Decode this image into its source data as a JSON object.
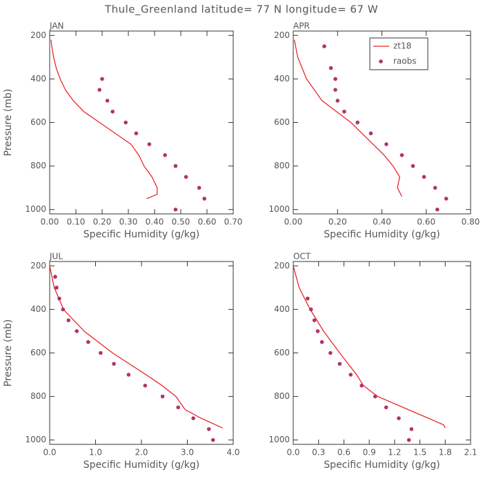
{
  "title": "Thule_Greenland  latitude= 77 N longitude= 67 W",
  "chart_data": [
    {
      "type": "line",
      "title": "JAN",
      "xlabel": "Specific Humidity (g/kg)",
      "ylabel": "Pressure (mb)",
      "xlim": [
        0,
        0.7
      ],
      "xticks": [
        {
          "value": 0,
          "label": "0.00"
        },
        {
          "value": 0.1,
          "label": "0.10"
        },
        {
          "value": 0.2,
          "label": "0.20"
        },
        {
          "value": 0.3,
          "label": "0.30"
        },
        {
          "value": 0.4,
          "label": "0.40"
        },
        {
          "value": 0.5,
          "label": "0.50"
        },
        {
          "value": 0.6,
          "label": "0.60"
        },
        {
          "value": 0.7,
          "label": "0.70"
        }
      ],
      "ylim": [
        1020,
        180
      ],
      "yticks": [
        200,
        400,
        600,
        800,
        1000
      ],
      "series": [
        {
          "name": "zt18",
          "style": "line",
          "color": "#e8262a",
          "x": [
            0.005,
            0.008,
            0.015,
            0.025,
            0.04,
            0.06,
            0.09,
            0.13,
            0.19,
            0.25,
            0.31,
            0.34,
            0.36,
            0.39,
            0.41,
            0.41,
            0.37
          ],
          "values": [
            220,
            250,
            300,
            350,
            400,
            450,
            500,
            550,
            600,
            650,
            700,
            750,
            800,
            850,
            900,
            930,
            950
          ]
        },
        {
          "name": "raobs",
          "style": "points",
          "color": "#b03565",
          "x": [
            0.2,
            0.19,
            0.22,
            0.24,
            0.29,
            0.33,
            0.38,
            0.44,
            0.48,
            0.52,
            0.57,
            0.59,
            0.48
          ],
          "values": [
            400,
            450,
            500,
            550,
            600,
            650,
            700,
            750,
            800,
            850,
            900,
            950,
            1000
          ]
        }
      ]
    },
    {
      "type": "line",
      "title": "APR",
      "xlabel": "Specific Humidity (g/kg)",
      "legend": "upper right",
      "xlim": [
        0,
        0.8
      ],
      "xticks": [
        {
          "value": 0,
          "label": "0.00"
        },
        {
          "value": 0.2,
          "label": "0.20"
        },
        {
          "value": 0.4,
          "label": "0.40"
        },
        {
          "value": 0.6,
          "label": "0.60"
        },
        {
          "value": 0.8,
          "label": "0.80"
        }
      ],
      "ylim": [
        1020,
        180
      ],
      "yticks": [
        200,
        400,
        600,
        800,
        1000
      ],
      "series": [
        {
          "name": "zt18",
          "style": "line",
          "color": "#e8262a",
          "x": [
            0.005,
            0.02,
            0.06,
            0.13,
            0.26,
            0.36,
            0.41,
            0.45,
            0.48,
            0.47,
            0.49
          ],
          "values": [
            220,
            300,
            400,
            500,
            600,
            700,
            750,
            800,
            850,
            900,
            940
          ]
        },
        {
          "name": "raobs",
          "style": "points",
          "color": "#b03565",
          "x": [
            0.14,
            0.17,
            0.19,
            0.19,
            0.2,
            0.23,
            0.29,
            0.35,
            0.42,
            0.49,
            0.54,
            0.59,
            0.64,
            0.69,
            0.65
          ],
          "values": [
            250,
            350,
            400,
            450,
            500,
            550,
            600,
            650,
            700,
            750,
            800,
            850,
            900,
            950,
            1000
          ]
        }
      ]
    },
    {
      "type": "line",
      "title": "JUL",
      "xlabel": "Specific Humidity (g/kg)",
      "ylabel": "Pressure (mb)",
      "xlim": [
        0,
        4
      ],
      "xticks": [
        {
          "value": 0,
          "label": "0.0"
        },
        {
          "value": 1,
          "label": "1.0"
        },
        {
          "value": 2,
          "label": "2.0"
        },
        {
          "value": 3,
          "label": "3.0"
        },
        {
          "value": 4,
          "label": "4.0"
        }
      ],
      "ylim": [
        1020,
        180
      ],
      "yticks": [
        200,
        400,
        600,
        800,
        1000
      ],
      "series": [
        {
          "name": "zt18",
          "style": "line",
          "color": "#e8262a",
          "x": [
            0.0,
            0.1,
            0.3,
            0.75,
            1.37,
            2.1,
            2.45,
            2.75,
            2.85,
            2.95,
            3.3,
            3.77
          ],
          "values": [
            200,
            300,
            400,
            500,
            600,
            700,
            750,
            800,
            830,
            860,
            900,
            945
          ]
        },
        {
          "name": "raobs",
          "style": "points",
          "color": "#b03565",
          "x": [
            0.12,
            0.15,
            0.21,
            0.29,
            0.41,
            0.59,
            0.84,
            1.11,
            1.4,
            1.72,
            2.08,
            2.46,
            2.8,
            3.13,
            3.47,
            3.56
          ],
          "values": [
            250,
            300,
            350,
            400,
            450,
            500,
            550,
            600,
            650,
            700,
            750,
            800,
            850,
            900,
            950,
            1000
          ]
        }
      ]
    },
    {
      "type": "line",
      "title": "OCT",
      "xlabel": "Specific Humidity (g/kg)",
      "xlim": [
        0,
        2.1
      ],
      "xticks": [
        {
          "value": 0,
          "label": "0.0"
        },
        0.3,
        0.6,
        0.9,
        1.2,
        1.5,
        1.8,
        2.1
      ],
      "ylim": [
        1020,
        180
      ],
      "yticks": [
        200,
        400,
        600,
        800,
        1000
      ],
      "series": [
        {
          "name": "zt18",
          "style": "line",
          "color": "#e8262a",
          "x": [
            0.0,
            0.07,
            0.2,
            0.36,
            0.55,
            0.75,
            0.83,
            1.0,
            1.3,
            1.6,
            1.78,
            1.8
          ],
          "values": [
            200,
            300,
            400,
            500,
            600,
            700,
            750,
            800,
            850,
            900,
            930,
            945
          ]
        },
        {
          "name": "raobs",
          "style": "points",
          "color": "#b03565",
          "x": [
            0.17,
            0.21,
            0.25,
            0.29,
            0.34,
            0.44,
            0.55,
            0.68,
            0.81,
            0.97,
            1.1,
            1.25,
            1.4,
            1.37
          ],
          "values": [
            350,
            400,
            450,
            500,
            550,
            600,
            650,
            700,
            750,
            800,
            850,
            900,
            950,
            1000
          ]
        }
      ]
    }
  ]
}
